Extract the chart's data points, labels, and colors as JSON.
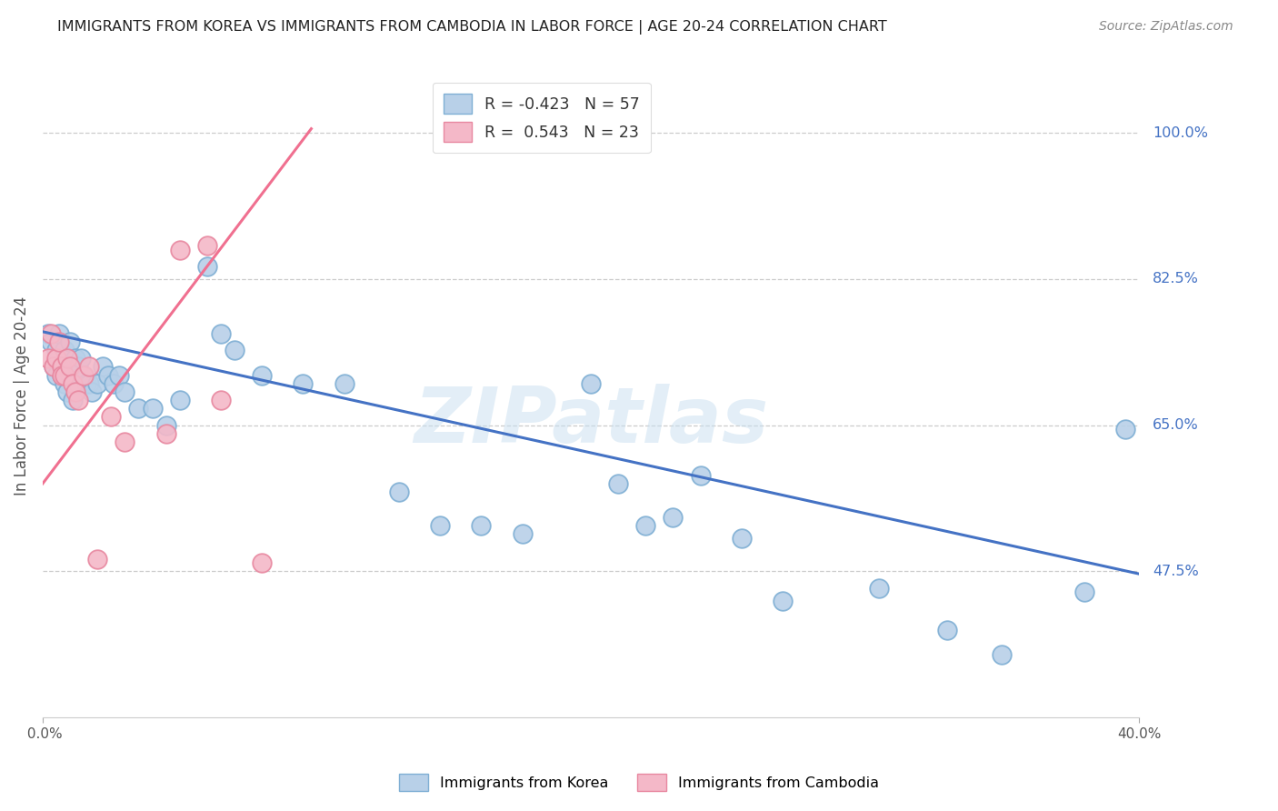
{
  "title": "IMMIGRANTS FROM KOREA VS IMMIGRANTS FROM CAMBODIA IN LABOR FORCE | AGE 20-24 CORRELATION CHART",
  "source": "Source: ZipAtlas.com",
  "ylabel": "In Labor Force | Age 20-24",
  "ytick_labels": [
    "47.5%",
    "65.0%",
    "82.5%",
    "100.0%"
  ],
  "ytick_values": [
    0.475,
    0.65,
    0.825,
    1.0
  ],
  "xlim": [
    0.0,
    0.4
  ],
  "ylim": [
    0.3,
    1.07
  ],
  "korea_color": "#b8d0e8",
  "korea_edge_color": "#7fafd4",
  "cambodia_color": "#f4b8c8",
  "cambodia_edge_color": "#e888a0",
  "korea_line_color": "#4472c4",
  "cambodia_line_color": "#f07090",
  "legend_R_korea_label": "R = -0.423",
  "legend_N_korea_label": "N = 57",
  "legend_R_cambodia_label": "R =  0.543",
  "legend_N_cambodia_label": "N = 23",
  "watermark": "ZIPatlas",
  "korea_scatter_x": [
    0.002,
    0.003,
    0.004,
    0.005,
    0.005,
    0.006,
    0.006,
    0.007,
    0.007,
    0.008,
    0.008,
    0.009,
    0.009,
    0.01,
    0.01,
    0.011,
    0.011,
    0.012,
    0.013,
    0.013,
    0.014,
    0.015,
    0.016,
    0.017,
    0.018,
    0.02,
    0.022,
    0.024,
    0.026,
    0.028,
    0.03,
    0.035,
    0.04,
    0.045,
    0.05,
    0.06,
    0.065,
    0.07,
    0.08,
    0.095,
    0.11,
    0.13,
    0.145,
    0.16,
    0.175,
    0.2,
    0.21,
    0.22,
    0.23,
    0.24,
    0.255,
    0.27,
    0.305,
    0.33,
    0.35,
    0.38,
    0.395
  ],
  "korea_scatter_y": [
    0.76,
    0.75,
    0.72,
    0.74,
    0.71,
    0.73,
    0.76,
    0.72,
    0.71,
    0.74,
    0.7,
    0.72,
    0.69,
    0.75,
    0.71,
    0.72,
    0.68,
    0.73,
    0.72,
    0.7,
    0.73,
    0.71,
    0.7,
    0.7,
    0.69,
    0.7,
    0.72,
    0.71,
    0.7,
    0.71,
    0.69,
    0.67,
    0.67,
    0.65,
    0.68,
    0.84,
    0.76,
    0.74,
    0.71,
    0.7,
    0.7,
    0.57,
    0.53,
    0.53,
    0.52,
    0.7,
    0.58,
    0.53,
    0.54,
    0.59,
    0.515,
    0.44,
    0.455,
    0.405,
    0.375,
    0.45,
    0.645
  ],
  "cambodia_scatter_x": [
    0.002,
    0.003,
    0.004,
    0.005,
    0.006,
    0.007,
    0.007,
    0.008,
    0.009,
    0.01,
    0.011,
    0.012,
    0.013,
    0.015,
    0.017,
    0.02,
    0.025,
    0.03,
    0.045,
    0.05,
    0.06,
    0.065,
    0.08
  ],
  "cambodia_scatter_y": [
    0.73,
    0.76,
    0.72,
    0.73,
    0.75,
    0.72,
    0.71,
    0.71,
    0.73,
    0.72,
    0.7,
    0.69,
    0.68,
    0.71,
    0.72,
    0.49,
    0.66,
    0.63,
    0.64,
    0.86,
    0.865,
    0.68,
    0.485
  ],
  "korea_trend_x": [
    0.0,
    0.4
  ],
  "korea_trend_y": [
    0.762,
    0.472
  ],
  "cambodia_trend_x": [
    0.0,
    0.098
  ],
  "cambodia_trend_y": [
    0.58,
    1.005
  ]
}
